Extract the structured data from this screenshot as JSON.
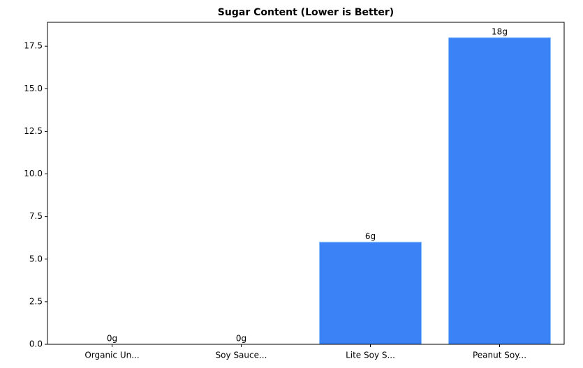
{
  "chart_data": {
    "type": "bar",
    "title": "Sugar Content (Lower is Better)",
    "categories": [
      "Organic Un...",
      "Soy Sauce...",
      "Lite Soy S...",
      "Peanut Soy..."
    ],
    "values": [
      0,
      0,
      6,
      18
    ],
    "value_labels": [
      "0g",
      "0g",
      "6g",
      "18g"
    ],
    "color": "#3b82f6",
    "ylim": [
      0,
      18.9
    ],
    "yticks": [
      {
        "value": 0,
        "label": "0.0"
      },
      2.5,
      {
        "value": 5,
        "label": "5.0"
      },
      7.5,
      {
        "value": 10,
        "label": "10.0"
      },
      12.5,
      {
        "value": 15,
        "label": "15.0"
      },
      17.5
    ],
    "grid": false
  }
}
